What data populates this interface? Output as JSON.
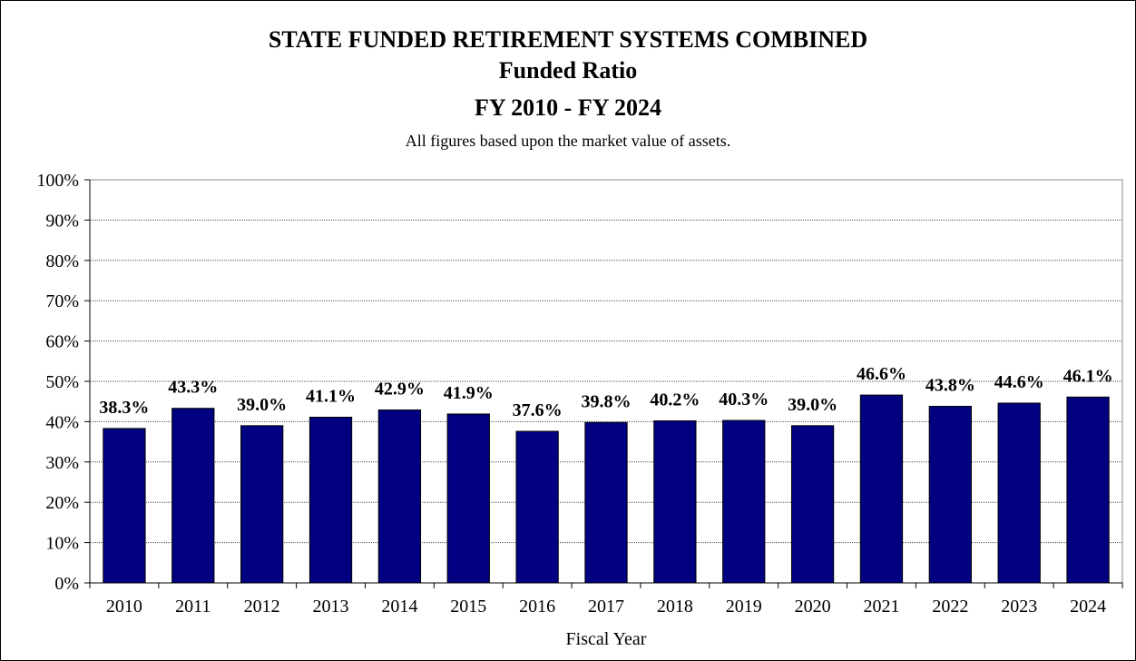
{
  "chart_data": {
    "type": "bar",
    "title": "STATE FUNDED RETIREMENT SYSTEMS COMBINED",
    "title_line2": "Funded Ratio",
    "title_line3": "FY 2010 - FY 2024",
    "subtitle": "All figures based upon the market value of assets.",
    "xlabel": "Fiscal Year",
    "ylabel": "",
    "categories": [
      "2010",
      "2011",
      "2012",
      "2013",
      "2014",
      "2015",
      "2016",
      "2017",
      "2018",
      "2019",
      "2020",
      "2021",
      "2022",
      "2023",
      "2024"
    ],
    "values": [
      38.3,
      43.3,
      39.0,
      41.1,
      42.9,
      41.9,
      37.6,
      39.8,
      40.2,
      40.3,
      39.0,
      46.6,
      43.8,
      44.6,
      46.1
    ],
    "data_labels": [
      "38.3%",
      "43.3%",
      "39.0%",
      "41.1%",
      "42.9%",
      "41.9%",
      "37.6%",
      "39.8%",
      "40.2%",
      "40.3%",
      "39.0%",
      "46.6%",
      "43.8%",
      "44.6%",
      "46.1%"
    ],
    "ylim": [
      0,
      100
    ],
    "yticks": [
      0,
      10,
      20,
      30,
      40,
      50,
      60,
      70,
      80,
      90,
      100
    ],
    "ytick_labels": [
      "0%",
      "10%",
      "20%",
      "30%",
      "40%",
      "50%",
      "60%",
      "70%",
      "80%",
      "90%",
      "100%"
    ],
    "grid": true,
    "legend": "none",
    "bar_color": "#000080"
  }
}
